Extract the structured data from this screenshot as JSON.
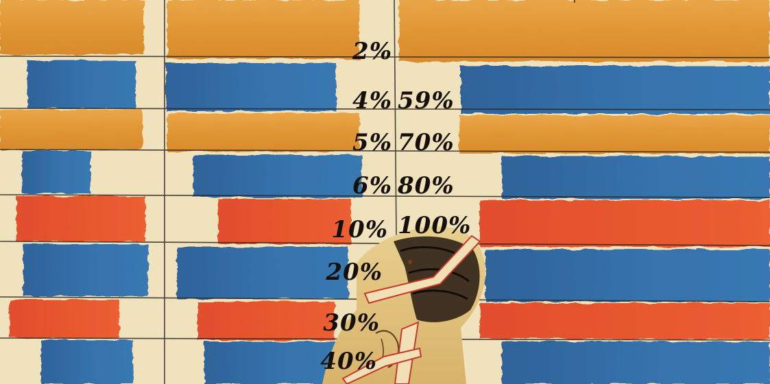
{
  "artwork": {
    "left_percent_labels": [
      "2%",
      "4%",
      "5%",
      "6%",
      "10%",
      "20%",
      "30%",
      "40%"
    ],
    "right_percent_labels": [
      "59%",
      "70%",
      "80%",
      "100%"
    ],
    "colors": {
      "paper": "#efe2bd",
      "orange": "#e39a3c",
      "blue": "#2e6ca6",
      "red": "#e4542c",
      "grid": "#2a2620"
    }
  }
}
